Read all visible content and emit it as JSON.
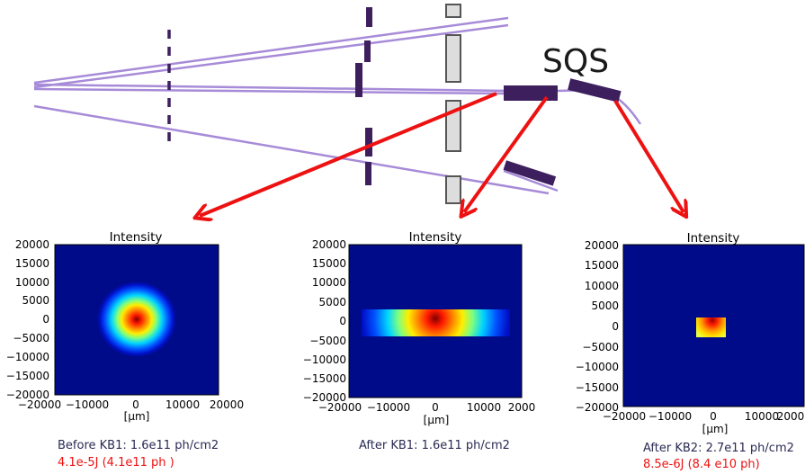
{
  "beamline": {
    "label": "SQS",
    "colors": {
      "beam": "#a78bd8",
      "optic": "#3d1f5e",
      "slit_frame": "#555555",
      "slit_fill": "#dddddd",
      "arrow": "#ee1111"
    }
  },
  "panels": [
    {
      "title": "Intensity",
      "y_ticks": [
        "20000",
        "15000",
        "10000",
        "5000",
        "0",
        "−5000",
        "−10000",
        "−15000",
        "−20000"
      ],
      "x_ticks": [
        "−20000",
        "−10000",
        "0",
        "10000",
        "20000"
      ],
      "x_unit": "[μm]",
      "caption_main": "Before KB1: 1.6e11 ph/cm2",
      "caption_energy": "4.1e-5J  (4.1e11 ph )"
    },
    {
      "title": "Intensity",
      "y_ticks": [
        "20000",
        "15000",
        "10000",
        "5000",
        "0",
        "−5000",
        "−10000",
        "−15000",
        "−20000"
      ],
      "x_ticks": [
        "−20000",
        "−10000",
        "0",
        "10000",
        "2000"
      ],
      "x_unit": "[μm]",
      "caption_main": "After KB1: 1.6e11 ph/cm2",
      "caption_energy": ""
    },
    {
      "title": "Intensity",
      "y_ticks": [
        "20000",
        "15000",
        "10000",
        "5000",
        "0",
        "−5000",
        "−10000",
        "−15000",
        "−20000"
      ],
      "x_ticks": [
        "−20000",
        "−10000",
        "0",
        "10000",
        "2000"
      ],
      "x_unit": "[μm]",
      "caption_main": "After KB2: 2.7e11 ph/cm2",
      "caption_energy": "8.5e-6J (8.4 e10 ph)"
    }
  ],
  "colormap": {
    "background": "#000b8a"
  }
}
